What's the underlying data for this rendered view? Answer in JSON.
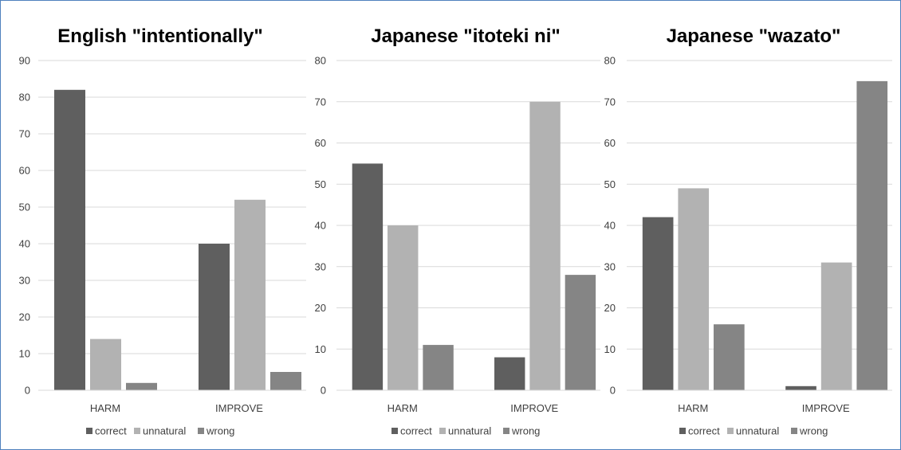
{
  "chart_data": [
    {
      "type": "bar",
      "title": "English \"intentionally\"",
      "categories": [
        "HARM",
        "IMPROVE"
      ],
      "series": [
        {
          "name": "correct",
          "values": [
            82,
            40
          ]
        },
        {
          "name": "unnatural",
          "values": [
            14,
            52
          ]
        },
        {
          "name": "wrong",
          "values": [
            2,
            5
          ]
        }
      ],
      "ylim": [
        0,
        90
      ],
      "yticks": [
        0,
        10,
        20,
        30,
        40,
        50,
        60,
        70,
        80,
        90
      ],
      "grid": true,
      "legend": "bottom"
    },
    {
      "type": "bar",
      "title": "Japanese \"itoteki ni\"",
      "categories": [
        "HARM",
        "IMPROVE"
      ],
      "series": [
        {
          "name": "correct",
          "values": [
            55,
            8
          ]
        },
        {
          "name": "unnatural",
          "values": [
            40,
            70
          ]
        },
        {
          "name": "wrong",
          "values": [
            11,
            28
          ]
        }
      ],
      "ylim": [
        0,
        80
      ],
      "yticks": [
        0,
        10,
        20,
        30,
        40,
        50,
        60,
        70,
        80
      ],
      "grid": true,
      "legend": "bottom"
    },
    {
      "type": "bar",
      "title": "Japanese \"wazato\"",
      "categories": [
        "HARM",
        "IMPROVE"
      ],
      "series": [
        {
          "name": "correct",
          "values": [
            42,
            1
          ]
        },
        {
          "name": "unnatural",
          "values": [
            49,
            31
          ]
        },
        {
          "name": "wrong",
          "values": [
            16,
            75
          ]
        }
      ],
      "ylim": [
        0,
        80
      ],
      "yticks": [
        0,
        10,
        20,
        30,
        40,
        50,
        60,
        70,
        80
      ],
      "grid": true,
      "legend": "bottom"
    }
  ],
  "colors": {
    "correct": "#5f5f5f",
    "unnatural": "#b2b2b2",
    "wrong": "#858585",
    "gridline": "#d9d9d9",
    "border": "#4f81bd"
  }
}
